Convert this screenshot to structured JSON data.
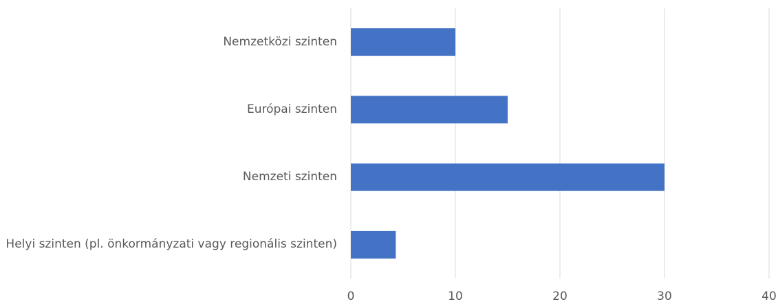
{
  "chart_data": {
    "type": "barh",
    "categories": [
      "Nemzetközi szinten",
      "Európai szinten",
      "Nemzeti szinten",
      "Helyi szinten (pl. önkormányzati vagy regionális szinten)"
    ],
    "values": [
      10,
      15,
      30,
      4.3
    ],
    "color": "#4472c4",
    "xlim": [
      0,
      40
    ],
    "xticks": [
      0,
      10,
      20,
      30,
      40
    ],
    "grid": true
  }
}
